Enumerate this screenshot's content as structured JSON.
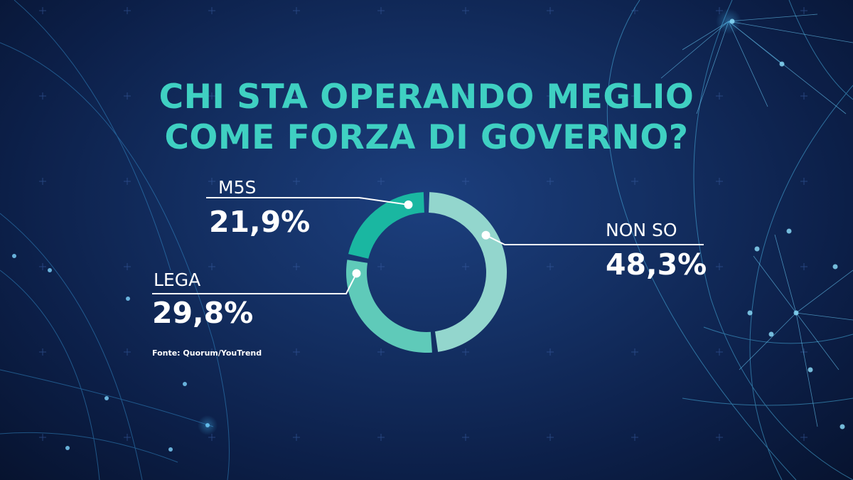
{
  "title": {
    "line1": "CHI STA OPERANDO MEGLIO",
    "line2": "COME FORZA DI GOVERNO?"
  },
  "source": "Fonte: Quorum/YouTrend",
  "colors": {
    "title": "#3fd0c2",
    "m5s": "#1ab7a1",
    "lega": "#5fcab9",
    "non_so": "#93d6cd"
  },
  "chart_data": {
    "type": "pie",
    "variant": "donut",
    "labels": [
      "M5S",
      "LEGA",
      "NON SO"
    ],
    "value_labels": [
      "21,9%",
      "29,8%",
      "48,3%"
    ],
    "values": [
      21.9,
      29.8,
      48.3
    ],
    "title": "CHI STA OPERANDO MEGLIO COME FORZA DI GOVERNO?"
  }
}
